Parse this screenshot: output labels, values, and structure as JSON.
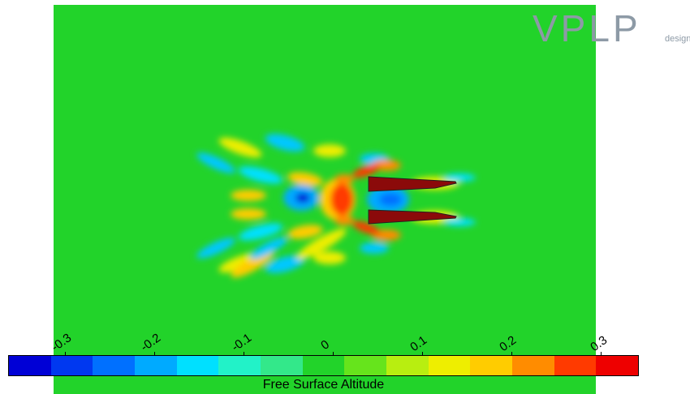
{
  "logo": {
    "mark": "VPLP",
    "sub": "design"
  },
  "colorbar": {
    "title": "Free Surface Altitude",
    "ticks": [
      "-0.3",
      "-0.2",
      "-0.1",
      "0",
      "0.1",
      "0.2",
      "0.3"
    ],
    "colors": [
      "#0000d6",
      "#0038f0",
      "#0070ff",
      "#00aaff",
      "#00e0ff",
      "#22f2c8",
      "#33e88a",
      "#22d32a",
      "#66e41c",
      "#b8ee10",
      "#eeee00",
      "#ffcc00",
      "#ff8c00",
      "#ff3a00",
      "#ee0000"
    ]
  },
  "colors": {
    "background": "#22d32a",
    "hull": "#8b0a0a"
  }
}
